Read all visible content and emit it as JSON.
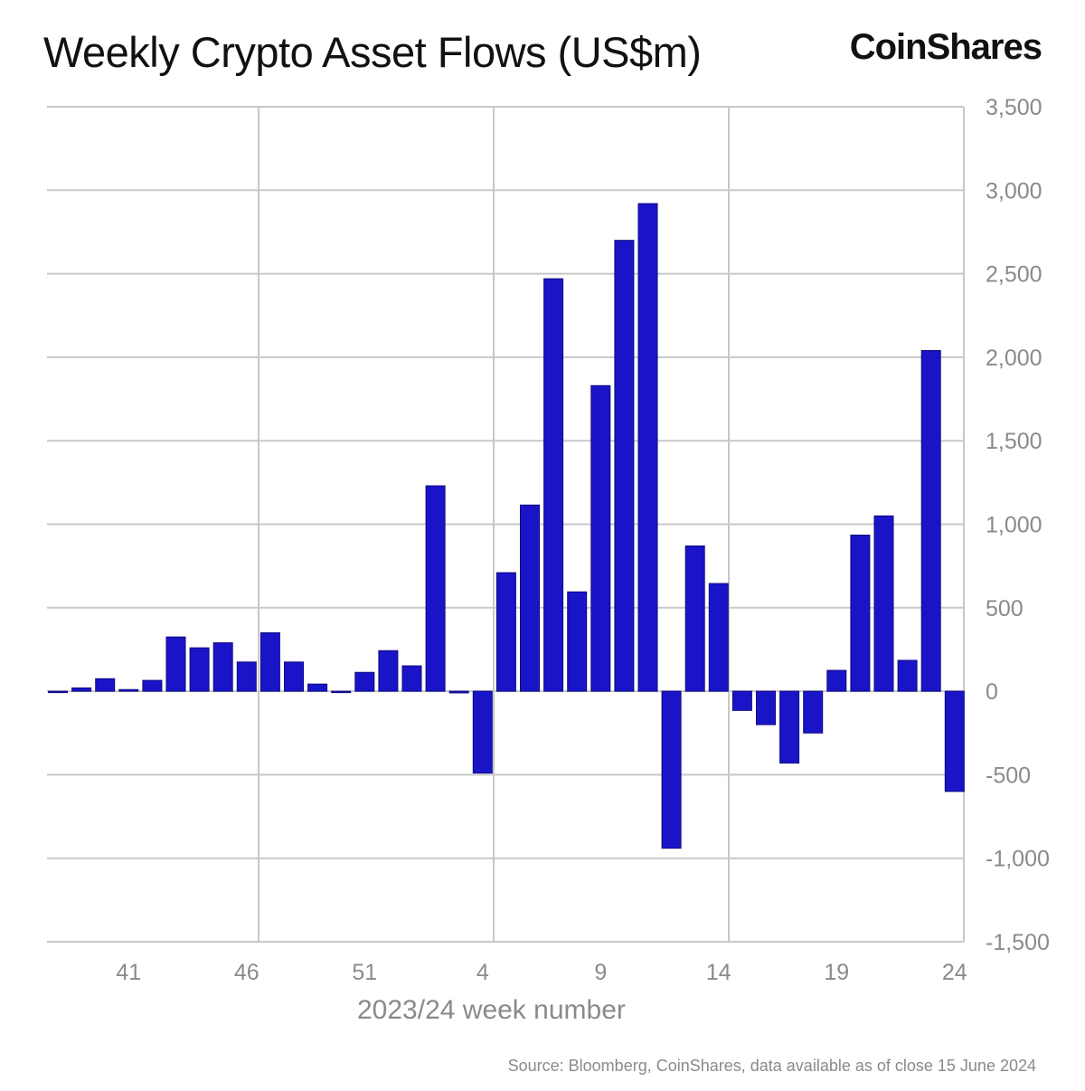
{
  "chart_data": {
    "type": "bar",
    "title": "Weekly Crypto Asset Flows (US$m)",
    "xlabel": "2023/24 week number",
    "ylabel": "",
    "ylim": [
      -1500,
      3500
    ],
    "yticks": [
      3500,
      3000,
      2500,
      2000,
      1500,
      1000,
      500,
      0,
      -500,
      -1000,
      -1500
    ],
    "ytick_labels": [
      "3,500",
      "3,000",
      "2,500",
      "2,000",
      "1,500",
      "1,000",
      "500",
      "0",
      "-500",
      "-1,000",
      "-1,500"
    ],
    "xtick_labels": [
      "41",
      "46",
      "51",
      "4",
      "9",
      "14",
      "19",
      "24"
    ],
    "grid": true,
    "bar_color": "#1a14c8",
    "categories": [
      "38",
      "39",
      "40",
      "41",
      "42",
      "43",
      "44",
      "45",
      "46",
      "47",
      "48",
      "49",
      "50",
      "51",
      "52",
      "1",
      "2",
      "3",
      "4",
      "5",
      "6",
      "7",
      "8",
      "9",
      "10",
      "11",
      "12",
      "13",
      "14",
      "15",
      "16",
      "17",
      "18",
      "19",
      "20",
      "21",
      "22",
      "23",
      "24"
    ],
    "values": [
      -5,
      20,
      75,
      10,
      65,
      325,
      260,
      290,
      175,
      350,
      175,
      43,
      -5,
      113,
      243,
      152,
      1230,
      -10,
      -490,
      710,
      1115,
      2470,
      595,
      1830,
      2700,
      2920,
      -940,
      870,
      645,
      -115,
      -200,
      -430,
      -250,
      125,
      935,
      1050,
      185,
      2040,
      -600
    ]
  },
  "logo": "CoinShares",
  "source": "Source: Bloomberg, CoinShares, data available as of close 15 June 2024"
}
